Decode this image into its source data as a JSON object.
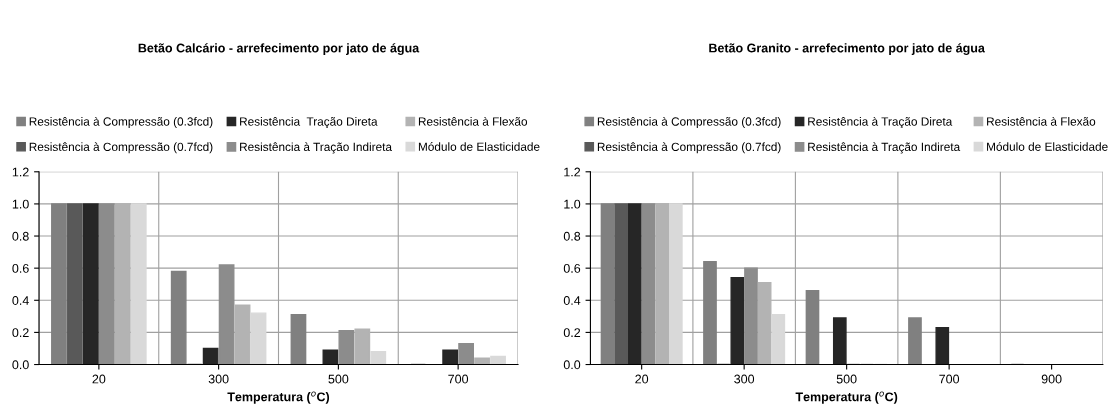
{
  "chart_data": [
    {
      "type": "bar",
      "title": "Betão Calcário - arrefecimento por jato de água",
      "xlabel": "Temperatura ($^{o}$C)",
      "categories": [
        "20",
        "300",
        "500",
        "700"
      ],
      "series": [
        {
          "name": "Resistência à Compressão (0.3fcd)",
          "color": "#808080",
          "values": [
            1.0,
            0.58,
            0.31,
            0.0
          ]
        },
        {
          "name": "Resistência à Compressão (0.7fcd)",
          "color": "#595959",
          "values": [
            1.0,
            0.0,
            null,
            null
          ]
        },
        {
          "name": "Resistência  Tração Direta",
          "color": "#262626",
          "values": [
            1.0,
            0.1,
            0.09,
            0.09
          ]
        },
        {
          "name": "Resistência à Tração Indireta",
          "color": "#8c8c8c",
          "values": [
            1.0,
            0.62,
            0.21,
            0.13
          ]
        },
        {
          "name": "Resistência à Flexão",
          "color": "#b3b3b3",
          "values": [
            1.0,
            0.37,
            0.22,
            0.04
          ]
        },
        {
          "name": "Módulo de Elasticidade",
          "color": "#d9d9d9",
          "values": [
            1.0,
            0.32,
            0.08,
            0.05
          ]
        }
      ],
      "ylim": [
        0,
        1.2
      ],
      "yticks": [
        {
          "value": 0,
          "label": "0.0"
        },
        {
          "value": 0.2,
          "label": "0.2"
        },
        {
          "value": 0.4,
          "label": "0.4"
        },
        {
          "value": 0.6,
          "label": "0.6"
        },
        {
          "value": 0.8,
          "label": "0.8"
        },
        {
          "value": 1.0,
          "label": "1.0"
        },
        {
          "value": 1.2,
          "label": "1.2"
        }
      ],
      "grid": true,
      "legend": "top"
    },
    {
      "type": "bar",
      "title": "Betão Granito - arrefecimento por jato de água",
      "xlabel": "Temperatura ($^{o}$C)",
      "categories": [
        "20",
        "300",
        "500",
        "700",
        "900"
      ],
      "series": [
        {
          "name": "Resistência à Compressão (0.3fcd)",
          "color": "#808080",
          "values": [
            1.0,
            0.64,
            0.46,
            0.29,
            0.0
          ]
        },
        {
          "name": "Resistência à Compressão (0.7fcd)",
          "color": "#595959",
          "values": [
            1.0,
            0.0,
            null,
            null,
            null
          ]
        },
        {
          "name": "Resistência à Tração Direta",
          "color": "#262626",
          "values": [
            1.0,
            0.54,
            0.29,
            0.23,
            null
          ]
        },
        {
          "name": "Resistência à Tração Indireta",
          "color": "#8c8c8c",
          "values": [
            1.0,
            0.6,
            0.0,
            null,
            null
          ]
        },
        {
          "name": "Resistência à Flexão",
          "color": "#b3b3b3",
          "values": [
            1.0,
            0.51,
            0.0,
            null,
            null
          ]
        },
        {
          "name": "Módulo de Elasticidade",
          "color": "#d9d9d9",
          "values": [
            1.0,
            0.31,
            0.0,
            null,
            null
          ]
        }
      ],
      "ylim": [
        0,
        1.2
      ],
      "yticks": [
        {
          "value": 0,
          "label": "0.0"
        },
        {
          "value": 0.2,
          "label": "0.2"
        },
        {
          "value": 0.4,
          "label": "0.4"
        },
        {
          "value": 0.6,
          "label": "0.6"
        },
        {
          "value": 0.8,
          "label": "0.8"
        },
        {
          "value": 1.0,
          "label": "1.0"
        },
        {
          "value": 1.2,
          "label": "1.2"
        }
      ],
      "grid": true,
      "legend": "top"
    }
  ]
}
